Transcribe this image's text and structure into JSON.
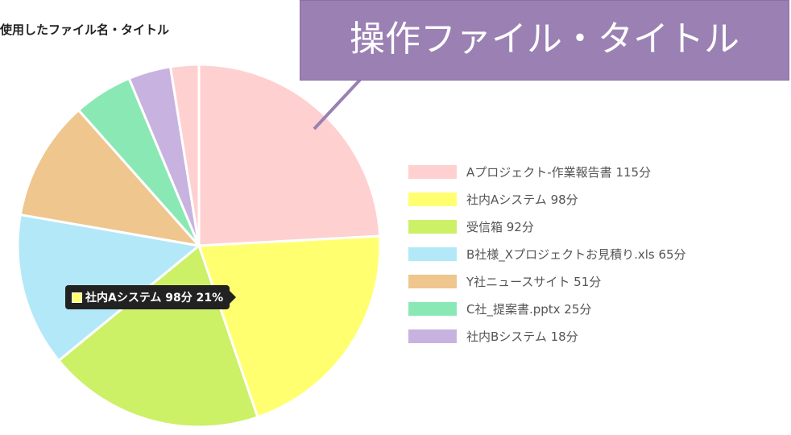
{
  "callout": {
    "text": "操作ファイル・タイトル",
    "color": "#9b80b3"
  },
  "tooltip": {
    "text": "社内Aシステム 98分 21%",
    "color": "#ffff70"
  },
  "chart_data": {
    "type": "pie",
    "title": "使用したファイル名・タイトル",
    "unit": "分",
    "legend_position": "right",
    "categories": [
      "Aプロジェクト-作業報告書",
      "社内Aシステム",
      "受信箱",
      "B社様_Xプロジェクトお見積り.xls",
      "Y社ニュースサイト",
      "C社_提案書.pptx",
      "社内Bシステム",
      ""
    ],
    "values": [
      115,
      98,
      92,
      65,
      51,
      25,
      18,
      12
    ],
    "colors": [
      "#ffd0d0",
      "#ffff70",
      "#ccf066",
      "#b3e8f8",
      "#eec68e",
      "#8ae8b4",
      "#c8b2e0",
      "#ffd0d0"
    ],
    "legend": [
      {
        "label": "Aプロジェクト-作業報告書 115分",
        "color": "#ffd0d0"
      },
      {
        "label": "社内Aシステム 98分",
        "color": "#ffff70"
      },
      {
        "label": "受信箱 92分",
        "color": "#ccf066"
      },
      {
        "label": "B社様_Xプロジェクトお見積り.xls 65分",
        "color": "#b3e8f8"
      },
      {
        "label": "Y社ニュースサイト 51分",
        "color": "#eec68e"
      },
      {
        "label": "C社_提案書.pptx 25分",
        "color": "#8ae8b4"
      },
      {
        "label": "社内Bシステム 18分",
        "color": "#c8b2e0"
      }
    ]
  }
}
